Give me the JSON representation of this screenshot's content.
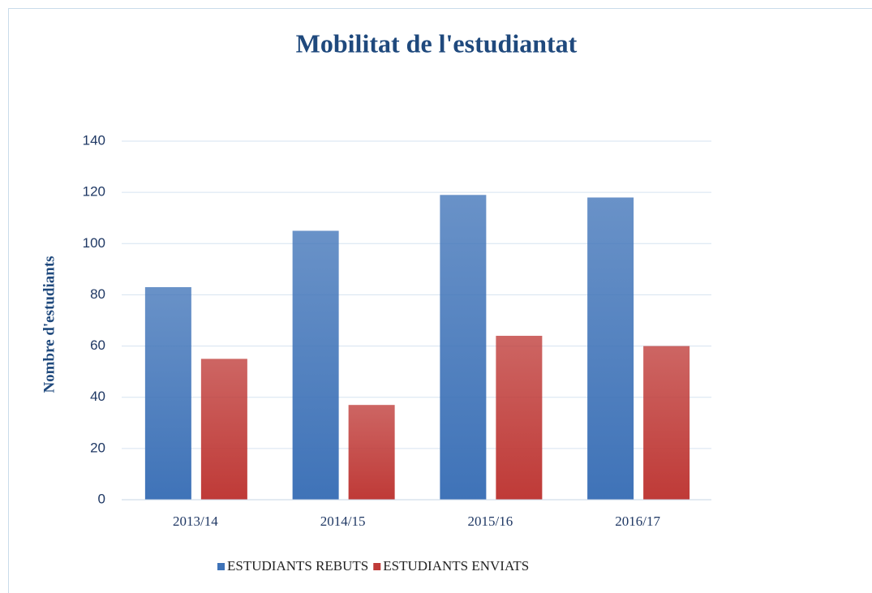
{
  "chart_data": {
    "type": "bar",
    "title": "Mobilitat de l'estudiantat",
    "y_label": "Nombre d'estudiants",
    "categories": [
      "2013/14",
      "2014/15",
      "2015/16",
      "2016/17"
    ],
    "series": [
      {
        "name": "ESTUDIANTS REBUTS",
        "color": "#3f73b8",
        "values": [
          83,
          105,
          119,
          118
        ]
      },
      {
        "name": "ESTUDIANTS ENVIATS",
        "color": "#bf3a37",
        "values": [
          55,
          37,
          64,
          60
        ]
      }
    ],
    "ylim": [
      0,
      140
    ],
    "yticks": [
      0,
      20,
      40,
      60,
      80,
      100,
      120,
      140
    ],
    "grid": true,
    "legend": "bottom"
  }
}
